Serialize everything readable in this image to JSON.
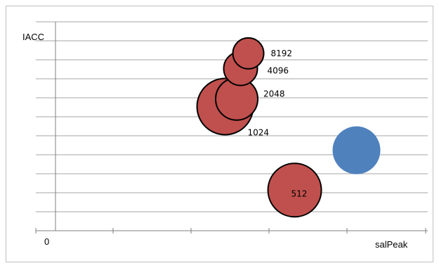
{
  "chart_data": {
    "type": "bubble",
    "ylabel": "IACC",
    "xlabel": "salPeak",
    "x_tick_labels": [
      "0"
    ],
    "grid": "horizontal",
    "legend": "none",
    "points": [
      {
        "label": "1024",
        "x": 2.45,
        "y": 5.5,
        "size": 1.0,
        "color": "#c0504d"
      },
      {
        "label": "2048",
        "x": 2.6,
        "y": 5.9,
        "size": 0.75,
        "color": "#c0504d"
      },
      {
        "label": "4096",
        "x": 2.65,
        "y": 7.5,
        "size": 0.6,
        "color": "#c0504d"
      },
      {
        "label": "8192",
        "x": 2.75,
        "y": 8.3,
        "size": 0.55,
        "color": "#c0504d"
      },
      {
        "label": "512",
        "x": 3.35,
        "y": 1.1,
        "size": 0.95,
        "color": "#c0504d"
      },
      {
        "label": "",
        "x": 4.15,
        "y": 3.2,
        "size": 0.85,
        "color": "#4f81bd"
      }
    ]
  }
}
